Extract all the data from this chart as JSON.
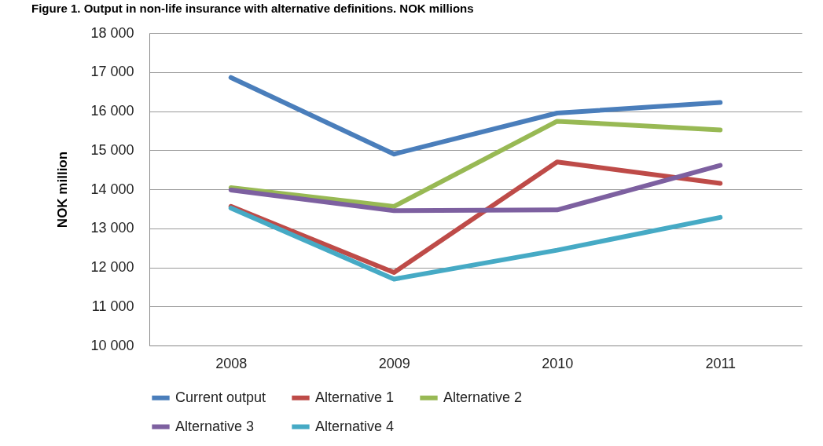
{
  "chart_data": {
    "type": "line",
    "title": "Figure 1. Output in non-life insurance with alternative definitions. NOK millions",
    "ylabel": "NOK million",
    "categories": [
      "2008",
      "2009",
      "2010",
      "2011"
    ],
    "series": [
      {
        "name": "Current output",
        "color": "#4a7ebb",
        "values": [
          16860,
          14900,
          15950,
          16220
        ]
      },
      {
        "name": "Alternative 1",
        "color": "#be4b48",
        "values": [
          13560,
          11870,
          14700,
          14150
        ]
      },
      {
        "name": "Alternative 2",
        "color": "#98b954",
        "values": [
          14040,
          13560,
          15740,
          15520
        ]
      },
      {
        "name": "Alternative 3",
        "color": "#7d60a0",
        "values": [
          13980,
          13450,
          13470,
          14610
        ]
      },
      {
        "name": "Alternative 4",
        "color": "#46aac5",
        "values": [
          13520,
          11700,
          12440,
          13280
        ]
      }
    ],
    "ylim": [
      10000,
      18000
    ],
    "yticks": [
      {
        "value": 10000,
        "label": "10 000"
      },
      {
        "value": 11000,
        "label": "11 000"
      },
      {
        "value": 12000,
        "label": "12 000"
      },
      {
        "value": 13000,
        "label": "13 000"
      },
      {
        "value": 14000,
        "label": "14 000"
      },
      {
        "value": 15000,
        "label": "15 000"
      },
      {
        "value": 16000,
        "label": "16 000"
      },
      {
        "value": 17000,
        "label": "17 000"
      },
      {
        "value": 18000,
        "label": "18 000"
      }
    ],
    "grid": "y",
    "legend": "bottom",
    "marker": "none",
    "line_style": "solid"
  }
}
